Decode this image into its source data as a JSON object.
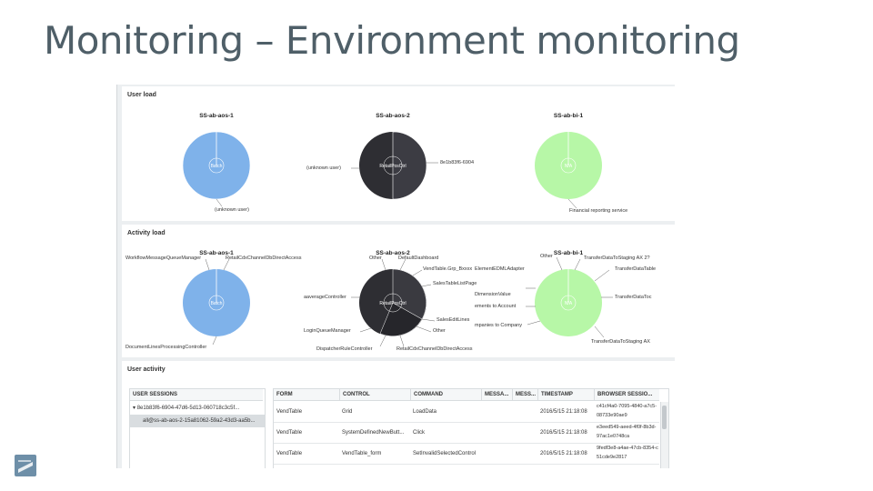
{
  "title": "Monitoring – Environment monitoring",
  "colors": {
    "blue": "#7fb2ea",
    "dark": "#2e2e33",
    "green": "#b7f7a7",
    "title": "#4f5f68"
  },
  "user_load": {
    "title": "User load",
    "servers": [
      {
        "name": "SS-ab-aos-1",
        "center": "Batch",
        "labels": [
          "(unknown user)"
        ]
      },
      {
        "name": "SS-ab-aos-2",
        "center": "RetailPosCtrl",
        "labels": [
          "(unknown user)",
          "8e1b83f6-6904"
        ]
      },
      {
        "name": "SS-ab-bi-1",
        "center": "N/A",
        "labels": [
          "Financial reporting service"
        ]
      }
    ]
  },
  "activity_load": {
    "title": "Activity load",
    "servers": [
      {
        "name": "SS-ab-aos-1",
        "center": "Batch",
        "labels": [
          "WorkflowMessageQueueManager",
          "RetailCdxChannelDbDirectAccess",
          "DocumentLinesProcessingController"
        ]
      },
      {
        "name": "SS-ab-aos-2",
        "center": "RetailPosCtrl",
        "labels": [
          "Other",
          "DefaultDashboard",
          "VendTable.Grp_Bxxxx",
          "SalesTableListPage",
          "aaverageController",
          "SalesEditLines",
          "Other",
          "LoginQueueManager",
          "DispatcherRuleController",
          "RetailCdxChannelDbDirectAccess"
        ]
      },
      {
        "name": "SS-ab-bi-1",
        "center": "N/A",
        "labels": [
          "Other",
          "TransferDataToStaging AX 2?",
          "ElementEDMLAdapter",
          "TransferDataTable",
          "DimensionValue",
          "TransferDataToc",
          "ements to Account",
          "mpanies to Company",
          "TransferDataToStaging AX"
        ]
      }
    ]
  },
  "user_activity": {
    "title": "User activity",
    "sessions_header": "USER SESSIONS",
    "sessions": [
      "8e1b83f6-6904-47d6-5d13-060718c3c5f...",
      "all@ss-ab-aos-2-15a81062-59a2-43d3-aa5b..."
    ],
    "columns": [
      "FORM",
      "CONTROL",
      "COMMAND",
      "MESSA...",
      "MESS...",
      "TIMESTAMP",
      "BROWSER SESSIO..."
    ],
    "rows": [
      [
        "VendTable",
        "Grid",
        "LoadData",
        "",
        "",
        "2016/5/15 21:18:08",
        "c41cf4a0-7095-4840-a7c5-08733e90ae9"
      ],
      [
        "VendTable",
        "SystemDefinedNewButt...",
        "Click",
        "",
        "",
        "2016/5/15 21:18:08",
        "e3eed549-aeed-4f0f-8b3d-97ac1e0748ca"
      ],
      [
        "VendTable",
        "VendTable_form",
        "SetInvalidSelectedControl",
        "",
        "",
        "2016/5/15 21:18:08",
        "9fedf3e8-a4ae-47cb-8354-c51cde9e2817"
      ]
    ]
  }
}
